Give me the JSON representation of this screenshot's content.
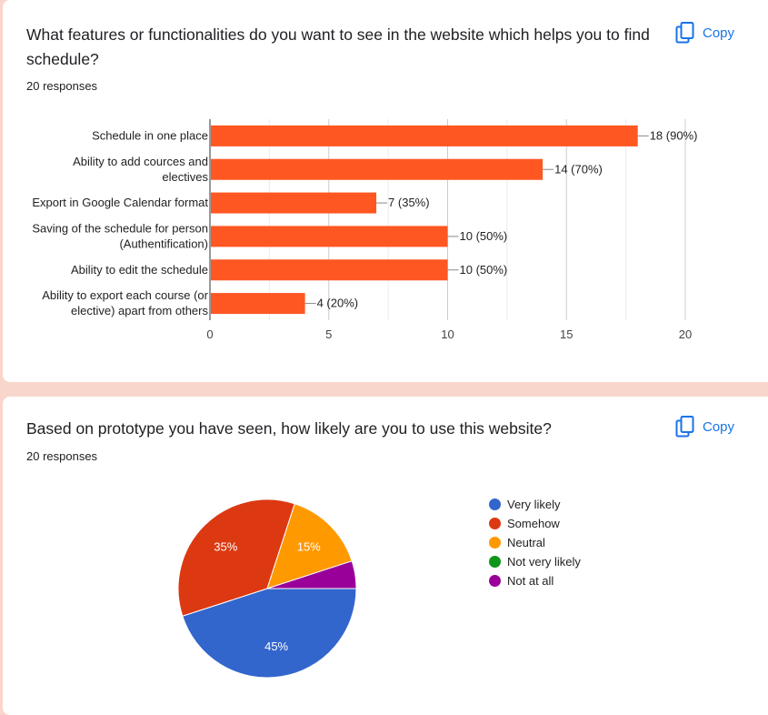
{
  "cards": [
    {
      "title": "What features or functionalities do you want to see in the website which helps you to find schedule?",
      "responses": "20 responses",
      "copy_label": "Copy",
      "copy_icon": "copy-icon"
    },
    {
      "title": "Based on prototype you have seen, how likely are you to use this website?",
      "responses": "20 responses",
      "copy_label": "Copy",
      "copy_icon": "copy-icon"
    }
  ],
  "chart_data": [
    {
      "type": "bar",
      "orientation": "horizontal",
      "categories": [
        [
          "Schedule in one place"
        ],
        [
          "Ability to add cources and",
          "electives"
        ],
        [
          "Export in Google Calendar format"
        ],
        [
          "Saving of the schedule for person",
          "(Authentification)"
        ],
        [
          "Ability to edit the schedule"
        ],
        [
          "Ability to export each course (or",
          "elective) apart from others"
        ]
      ],
      "values": [
        18,
        14,
        7,
        10,
        10,
        4
      ],
      "data_labels": [
        "18 (90%)",
        "14 (70%)",
        "7 (35%)",
        "10 (50%)",
        "10 (50%)",
        "4 (20%)"
      ],
      "xlim": [
        0,
        20
      ],
      "ticks": [
        0,
        5,
        10,
        15,
        20
      ],
      "grid": true,
      "color": "#ff5722"
    },
    {
      "type": "pie",
      "labels": [
        "Very likely",
        "Somehow",
        "Neutral",
        "Not very likely",
        "Not at all"
      ],
      "values": [
        45,
        35,
        15,
        0,
        5
      ],
      "slice_labels": [
        "45%",
        "35%",
        "15%",
        "",
        ""
      ],
      "colors": [
        "#3366cc",
        "#dc3912",
        "#ff9900",
        "#109618",
        "#990099"
      ],
      "legend_position": "right"
    }
  ]
}
